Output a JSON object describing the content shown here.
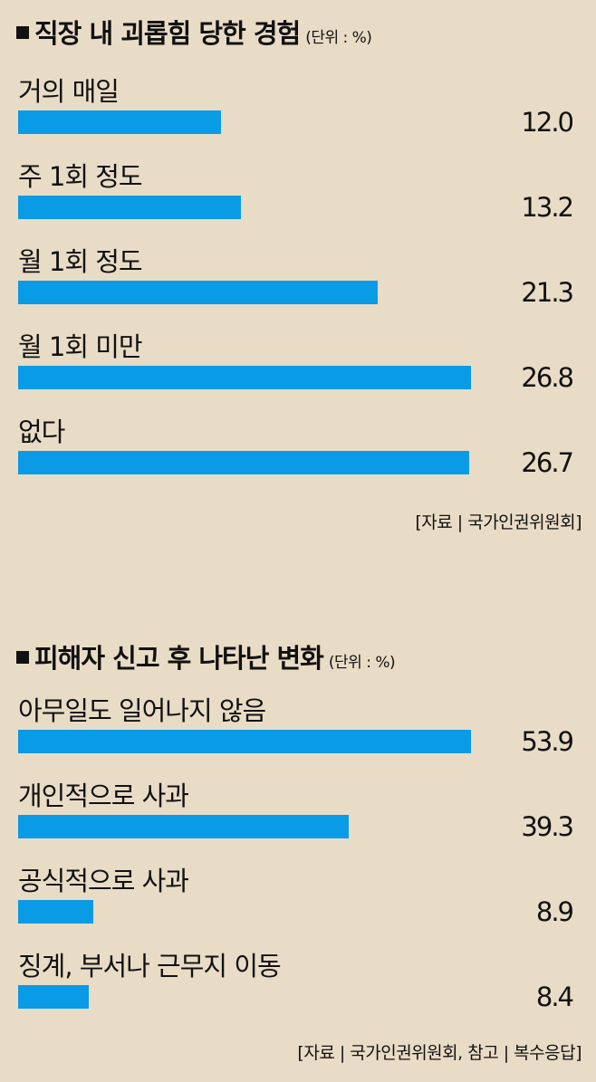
{
  "chart_data": [
    {
      "type": "bar",
      "title": "직장 내 괴롭힘 당한 경험",
      "unit": "(단위 : %)",
      "categories": [
        "거의 매일",
        "주 1회 정도",
        "월 1회 정도",
        "월 1회 미만",
        "없다"
      ],
      "values": [
        "12.0",
        "13.2",
        "21.3",
        "26.8",
        "26.7"
      ],
      "source": "[자료 | 국가인권위원회]",
      "bar_color": "#0a9be6"
    },
    {
      "type": "bar",
      "title": "피해자 신고 후 나타난 변화",
      "unit": "(단위 : %)",
      "categories": [
        "아무일도 일어나지 않음",
        "개인적으로 사과",
        "공식적으로 사과",
        "징계, 부서나 근무지 이동"
      ],
      "values": [
        "53.9",
        "39.3",
        "8.9",
        "8.4"
      ],
      "source": "[자료 | 국가인권위원회, 참고 | 복수응답]",
      "bar_color": "#0a9be6"
    }
  ]
}
